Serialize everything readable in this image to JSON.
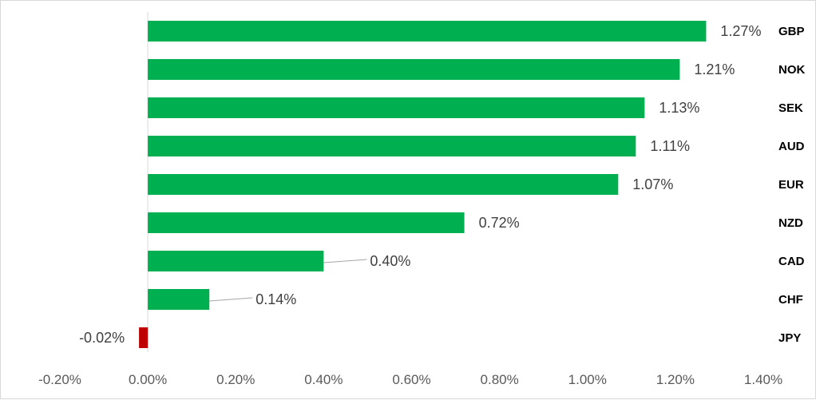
{
  "chart_data": {
    "type": "bar",
    "orientation": "horizontal",
    "categories": [
      "GBP",
      "NOK",
      "SEK",
      "AUD",
      "EUR",
      "NZD",
      "CAD",
      "CHF",
      "JPY"
    ],
    "values": [
      1.27,
      1.21,
      1.13,
      1.11,
      1.07,
      0.72,
      0.4,
      0.14,
      -0.02
    ],
    "data_labels": [
      "1.27%",
      "1.21%",
      "1.13%",
      "1.11%",
      "1.07%",
      "0.72%",
      "0.40%",
      "0.14%",
      "-0.02%"
    ],
    "xlim": [
      -0.2,
      1.4
    ],
    "x_ticks": [
      -0.2,
      0.0,
      0.2,
      0.4,
      0.6,
      0.8,
      1.0,
      1.2,
      1.4
    ],
    "x_tick_labels": [
      "-0.20%",
      "0.00%",
      "0.20%",
      "0.40%",
      "0.60%",
      "0.80%",
      "1.00%",
      "1.20%",
      "1.40%"
    ],
    "category_label_position": "right",
    "grid": false,
    "legend": false,
    "title": "",
    "xlabel": "",
    "ylabel": "",
    "colors": {
      "positive": "#00b050",
      "negative": "#c00000",
      "axis": "#d9d9d9",
      "leader": "#a6a6a6"
    }
  }
}
